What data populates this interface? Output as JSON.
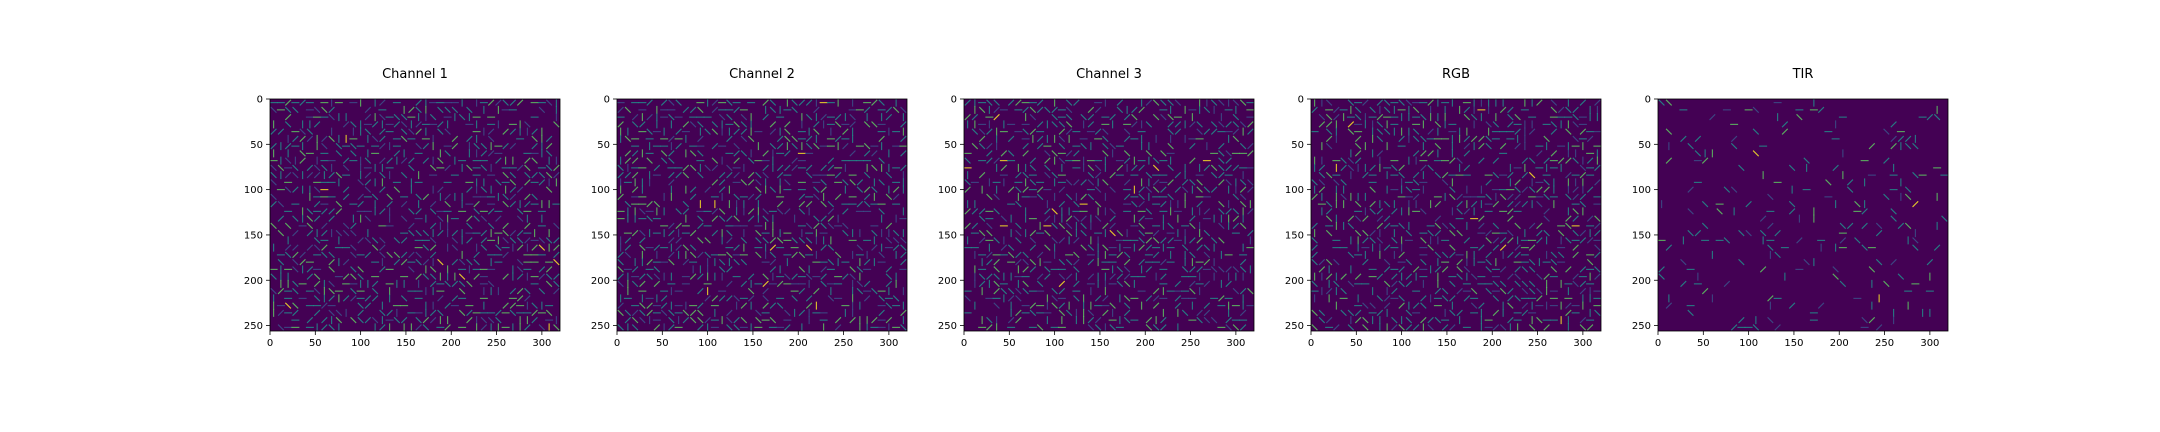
{
  "chart_data": [
    {
      "type": "heatmap",
      "title": "Channel 1",
      "xlabel": "",
      "ylabel": "",
      "xlim": [
        0,
        320
      ],
      "ylim": [
        256,
        0
      ],
      "xticks": [
        0,
        50,
        100,
        150,
        200,
        250,
        300
      ],
      "yticks": [
        0,
        50,
        100,
        150,
        200,
        250
      ],
      "colormap": "viridis",
      "content": "HOG gradient visualization (glyph pattern)"
    },
    {
      "type": "heatmap",
      "title": "Channel 2",
      "xlabel": "",
      "ylabel": "",
      "xlim": [
        0,
        320
      ],
      "ylim": [
        256,
        0
      ],
      "xticks": [
        0,
        50,
        100,
        150,
        200,
        250,
        300
      ],
      "yticks": [
        0,
        50,
        100,
        150,
        200,
        250
      ],
      "colormap": "viridis",
      "content": "HOG gradient visualization (glyph pattern)"
    },
    {
      "type": "heatmap",
      "title": "Channel 3",
      "xlabel": "",
      "ylabel": "",
      "xlim": [
        0,
        320
      ],
      "ylim": [
        256,
        0
      ],
      "xticks": [
        0,
        50,
        100,
        150,
        200,
        250,
        300
      ],
      "yticks": [
        0,
        50,
        100,
        150,
        200,
        250
      ],
      "colormap": "viridis",
      "content": "HOG gradient visualization (glyph pattern)"
    },
    {
      "type": "heatmap",
      "title": "RGB",
      "xlabel": "",
      "ylabel": "",
      "xlim": [
        0,
        320
      ],
      "ylim": [
        256,
        0
      ],
      "xticks": [
        0,
        50,
        100,
        150,
        200,
        250,
        300
      ],
      "yticks": [
        0,
        50,
        100,
        150,
        200,
        250
      ],
      "colormap": "viridis",
      "content": "HOG gradient visualization (glyph pattern)"
    },
    {
      "type": "heatmap",
      "title": "TIR",
      "xlabel": "",
      "ylabel": "",
      "xlim": [
        0,
        320
      ],
      "ylim": [
        256,
        0
      ],
      "xticks": [
        0,
        50,
        100,
        150,
        200,
        250,
        300
      ],
      "yticks": [
        0,
        50,
        100,
        150,
        200,
        250
      ],
      "colormap": "viridis",
      "content": "HOG gradient visualization (sparse glyph pattern)"
    }
  ],
  "colors": {
    "background": "#440154",
    "low": "#3b528b",
    "mid": "#21918c",
    "high": "#5ec962",
    "peak": "#fde725",
    "axis": "#000000"
  }
}
